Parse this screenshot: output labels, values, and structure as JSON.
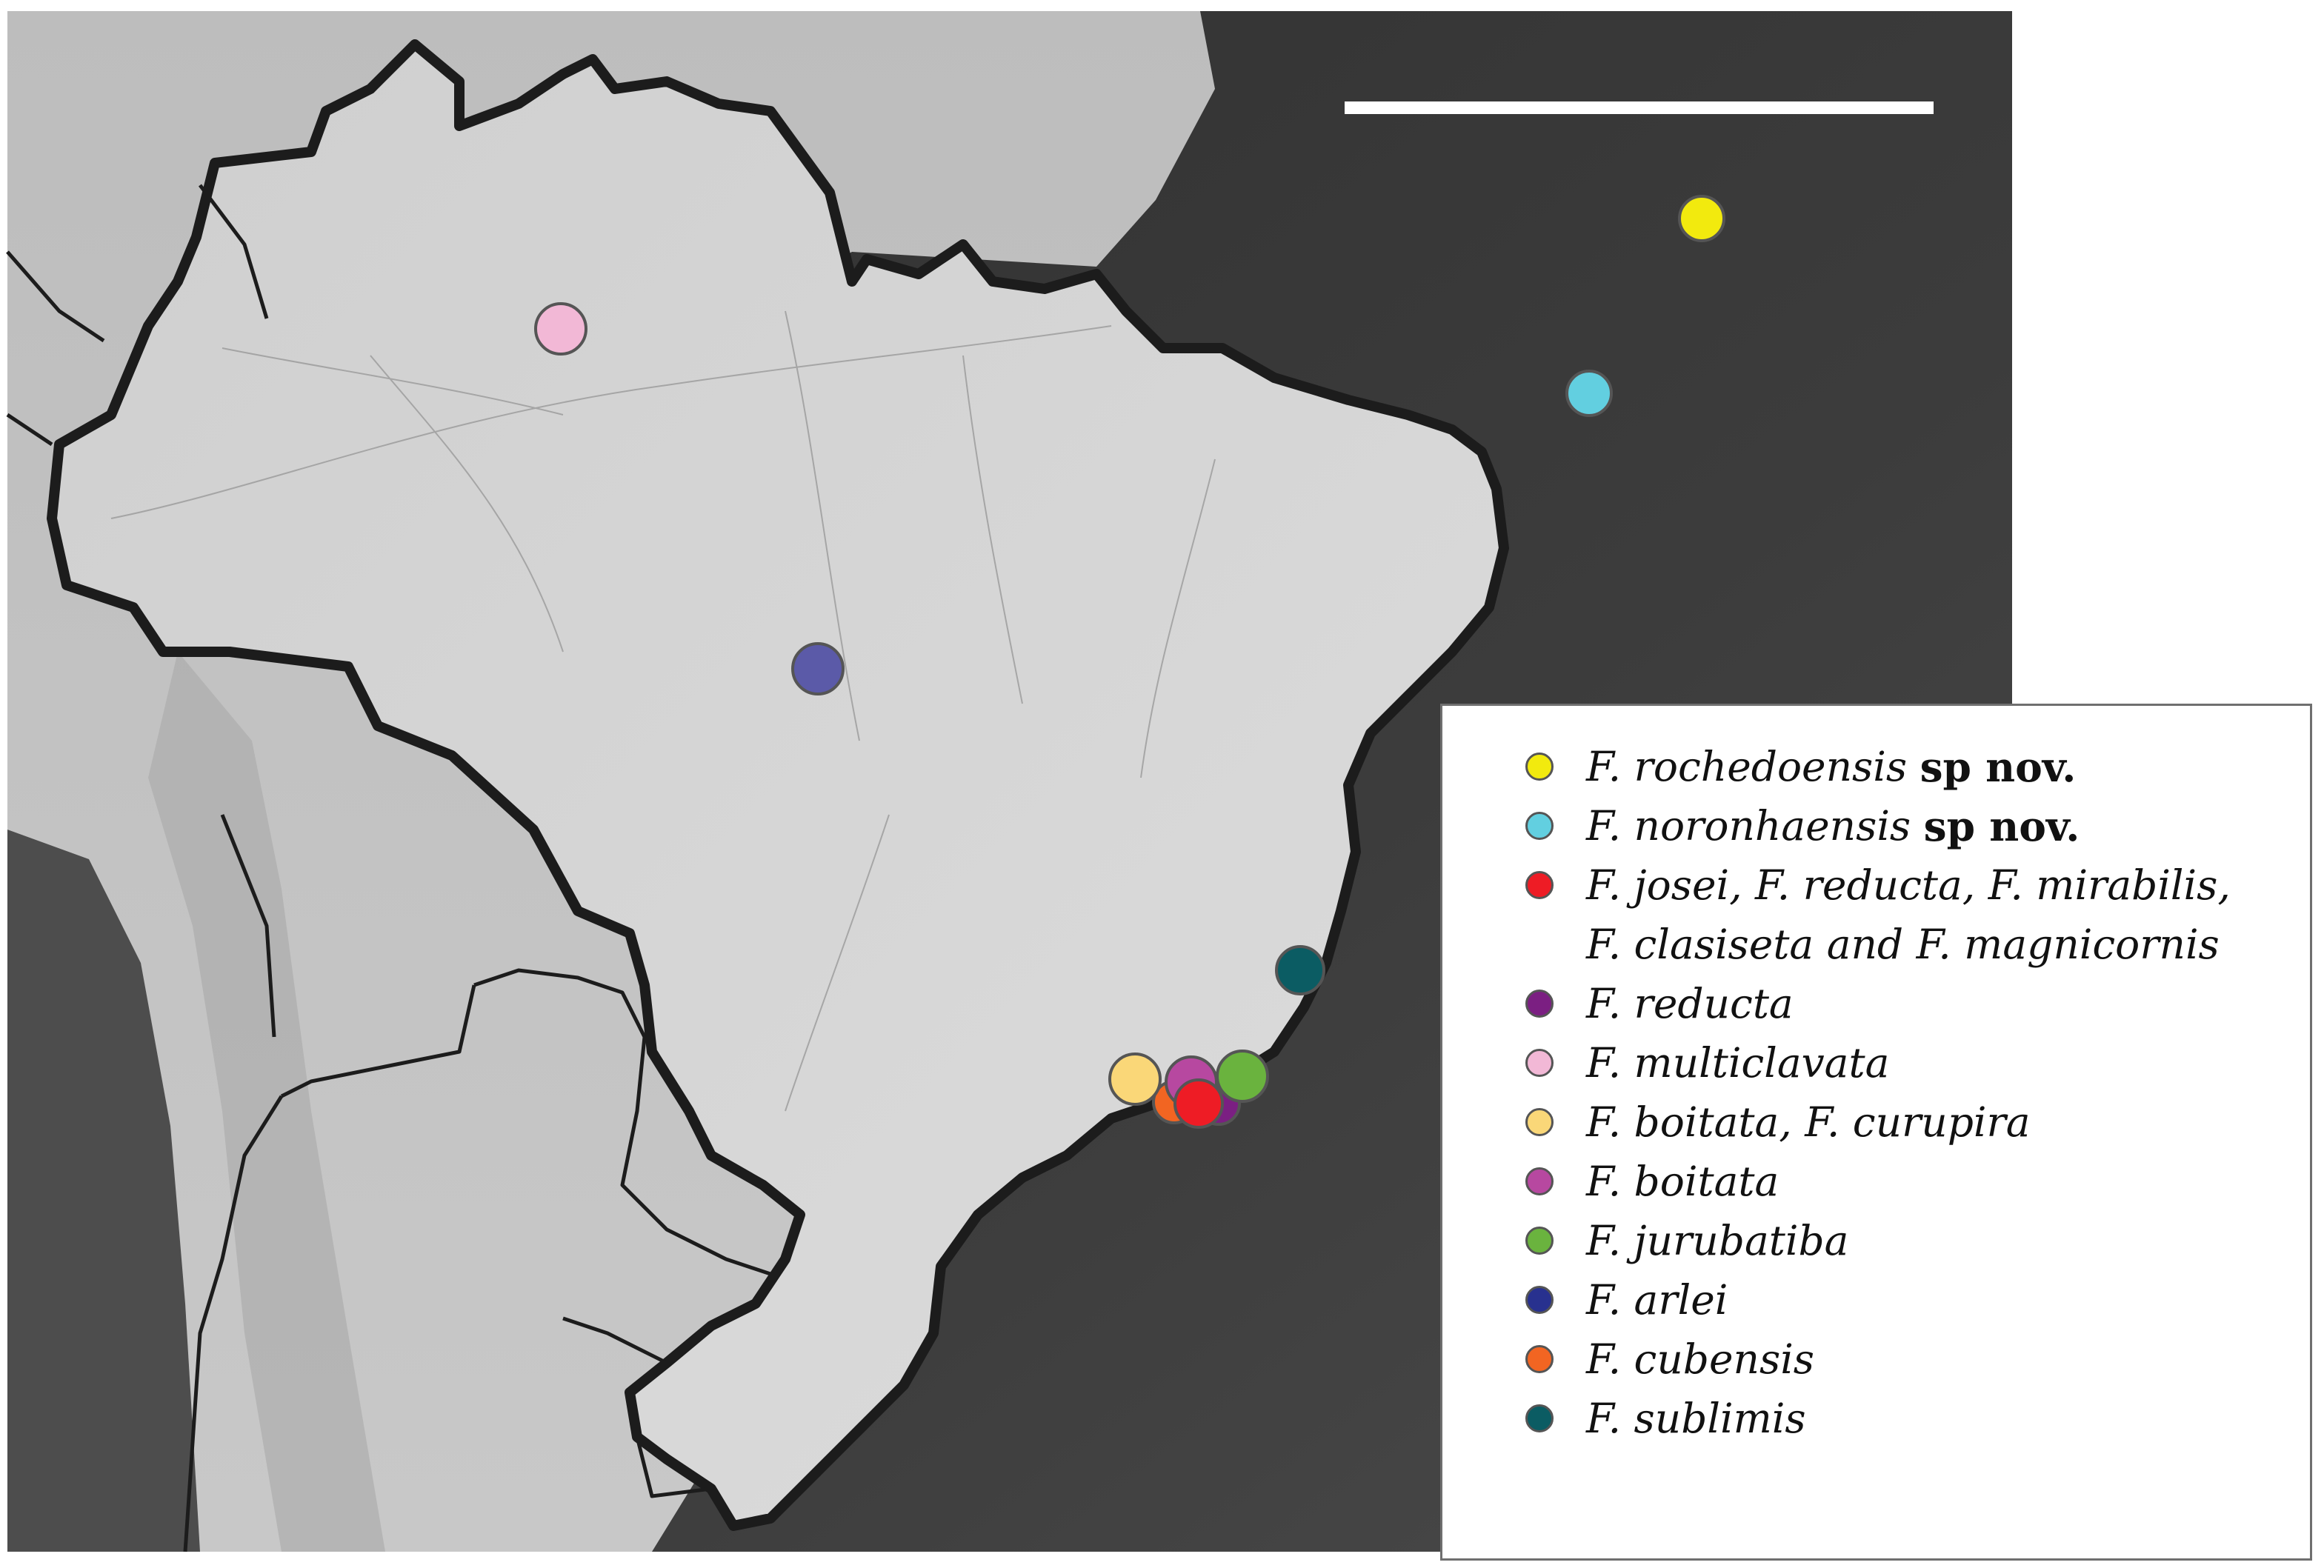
{
  "legend": {
    "entries": [
      {
        "species": "F. rochedoensis",
        "qualifier": "sp nov.",
        "color": "#f2ea0e"
      },
      {
        "species": "F. noronhaensis",
        "qualifier": "sp nov.",
        "color": "#62cfe0"
      },
      {
        "species": "F. josei, F. reducta, F. mirabilis,",
        "continuation": "F. clasiseta and F. magnicornis",
        "color": "#ee1c25"
      },
      {
        "species": "F. reducta",
        "color": "#7b1f82"
      },
      {
        "species": "F. multiclavata",
        "color": "#f2b8d6"
      },
      {
        "species": "F. boitata, F. curupira",
        "color": "#fad778"
      },
      {
        "species": "F. boitata",
        "color": "#b748a0"
      },
      {
        "species": "F. jurubatiba",
        "color": "#6ab33e"
      },
      {
        "species": "F. arlei",
        "color": "#28318f"
      },
      {
        "species": "F. cubensis",
        "color": "#f26522"
      },
      {
        "species": "F. sublimis",
        "color": "#0b5c63"
      }
    ]
  },
  "colors": {
    "ocean": "#3f3f3f",
    "land": "#c9c9c9",
    "brazil": "#d6d6d6",
    "border": "#1c1c1c",
    "scale_bar": "#ffffff"
  },
  "icons": [
    "scale-bar",
    "locality-marker",
    "legend-swatch"
  ]
}
